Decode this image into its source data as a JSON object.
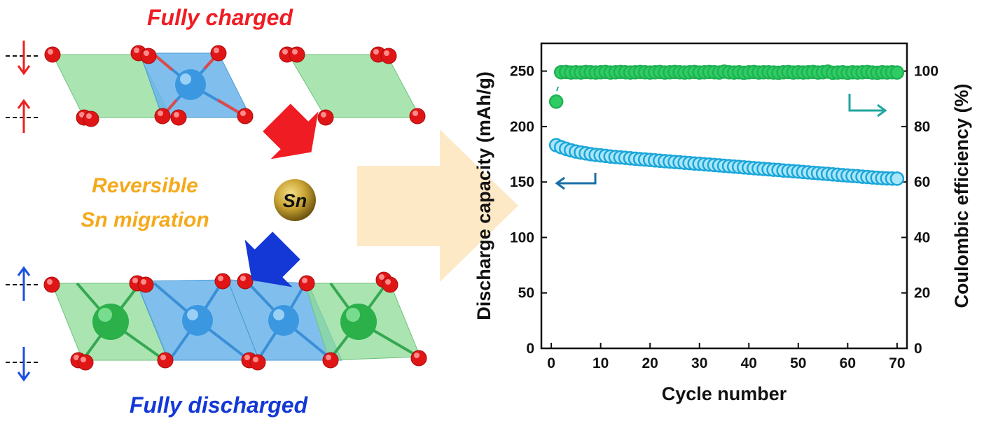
{
  "schematic": {
    "label_top": "Fully charged",
    "label_middle_line1": "Reversible",
    "label_middle_line2": "Sn migration",
    "atom_label": "Sn",
    "label_bottom": "Fully discharged",
    "colors": {
      "charged": "#ef1c24",
      "discharged": "#1438d6",
      "migration": "#f4aa1c",
      "oxygen": "#e01616",
      "green_polyhedra": "#8edc97",
      "blue_polyhedra": "#6ab4ea",
      "sn_atom": "#c8a232",
      "big_arrow": "#fde9c6"
    }
  },
  "chart_data": {
    "type": "scatter",
    "xlabel": "Cycle number",
    "ylabel": "Discharge capacity (mAh/g)",
    "y2label": "Coulombic efficiency (%)",
    "xlim": [
      -2,
      72
    ],
    "ylim": [
      0,
      275
    ],
    "y2lim": [
      0,
      110
    ],
    "x_ticks": [
      0,
      10,
      20,
      30,
      40,
      50,
      60,
      70
    ],
    "y_ticks": [
      0,
      50,
      100,
      150,
      200,
      250
    ],
    "y2_ticks": [
      0,
      20,
      40,
      60,
      80,
      100
    ],
    "grid": false,
    "series": [
      {
        "axis": "right",
        "color": "#1fb255",
        "fill": "#2fcc63",
        "x": [
          1,
          2,
          3,
          4,
          5,
          6,
          7,
          8,
          9,
          10,
          11,
          12,
          13,
          14,
          15,
          16,
          17,
          18,
          19,
          20,
          21,
          22,
          23,
          24,
          25,
          26,
          27,
          28,
          29,
          30,
          31,
          32,
          33,
          34,
          35,
          36,
          37,
          38,
          39,
          40,
          41,
          42,
          43,
          44,
          45,
          46,
          47,
          48,
          49,
          50,
          51,
          52,
          53,
          54,
          55,
          56,
          57,
          58,
          59,
          60,
          61,
          62,
          63,
          64,
          65,
          66,
          67,
          68,
          69,
          70
        ],
        "y": [
          89,
          99.6,
          99.7,
          99.5,
          99.6,
          99.5,
          99.7,
          99.6,
          99.5,
          99.6,
          99.7,
          99.5,
          99.6,
          99.7,
          99.6,
          99.5,
          99.6,
          99.7,
          99.6,
          99.5,
          99.6,
          99.7,
          99.5,
          99.6,
          99.7,
          99.6,
          99.5,
          99.6,
          99.7,
          99.5,
          99.6,
          99.7,
          99.6,
          99.5,
          99.8,
          99.6,
          99.5,
          99.6,
          99.4,
          99.6,
          99.7,
          99.5,
          99.6,
          99.6,
          99.5,
          99.4,
          99.6,
          99.7,
          99.5,
          99.6,
          99.5,
          99.6,
          99.7,
          99.5,
          99.6,
          99.8,
          99.4,
          99.5,
          99.6,
          99.4,
          99.6,
          99.5,
          99.6,
          99.7,
          99.5,
          99.4,
          99.6,
          99.5,
          99.6,
          99.5
        ]
      },
      {
        "axis": "left",
        "color": "#1ba6d8",
        "fill": "#a9e6fa",
        "x": [
          1,
          2,
          3,
          4,
          5,
          6,
          7,
          8,
          9,
          10,
          11,
          12,
          13,
          14,
          15,
          16,
          17,
          18,
          19,
          20,
          21,
          22,
          23,
          24,
          25,
          26,
          27,
          28,
          29,
          30,
          31,
          32,
          33,
          34,
          35,
          36,
          37,
          38,
          39,
          40,
          41,
          42,
          43,
          44,
          45,
          46,
          47,
          48,
          49,
          50,
          51,
          52,
          53,
          54,
          55,
          56,
          57,
          58,
          59,
          60,
          61,
          62,
          63,
          64,
          65,
          66,
          67,
          68,
          69,
          70
        ],
        "y": [
          183.2,
          181.4,
          179.9,
          178.6,
          177.5,
          176.6,
          175.8,
          175.1,
          174.5,
          174.0,
          173.5,
          173.0,
          172.6,
          172.2,
          171.8,
          171.4,
          171.0,
          170.6,
          170.3,
          169.9,
          169.5,
          169.2,
          168.8,
          168.5,
          168.1,
          167.8,
          167.4,
          167.1,
          166.7,
          166.4,
          166.0,
          165.7,
          165.3,
          165.0,
          164.6,
          164.3,
          163.9,
          163.6,
          163.2,
          162.9,
          162.5,
          162.2,
          161.8,
          161.5,
          161.1,
          160.8,
          160.4,
          160.1,
          159.7,
          159.4,
          159.0,
          158.7,
          158.3,
          158.0,
          157.6,
          157.3,
          156.9,
          156.6,
          156.2,
          155.9,
          155.5,
          155.2,
          154.8,
          154.5,
          154.1,
          153.8,
          153.5,
          153.3,
          153.1,
          153.0
        ]
      }
    ]
  }
}
